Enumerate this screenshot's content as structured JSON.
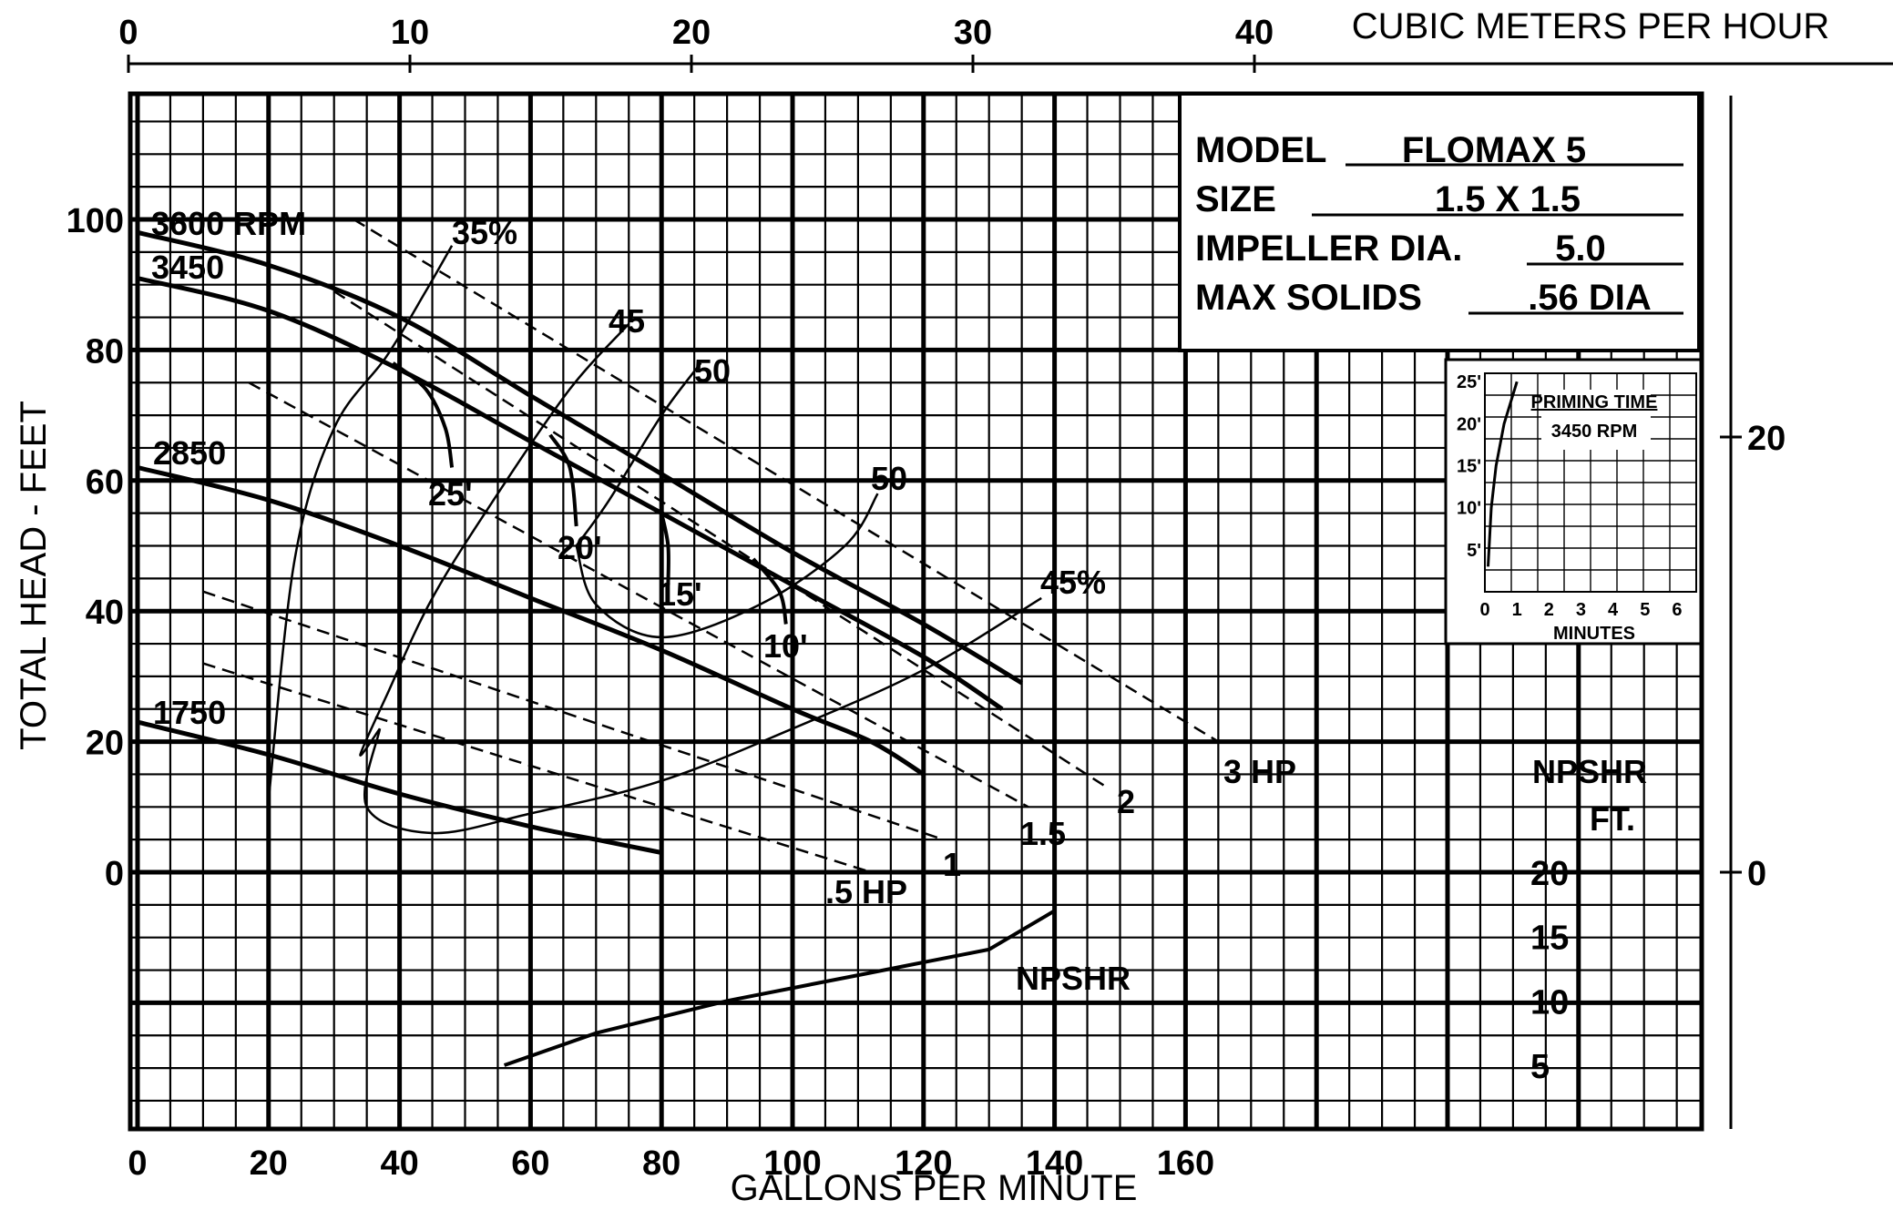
{
  "chart_data": {
    "type": "line",
    "xlabel": "GALLONS PER MINUTE",
    "ylabel": "TOTAL HEAD - FEET",
    "x2label": "CUBIC METERS PER HOUR",
    "xlim": [
      0,
      240
    ],
    "ylim": [
      -38,
      118
    ],
    "x_ticks": [
      "0",
      "20",
      "40",
      "60",
      "80",
      "100",
      "120",
      "140",
      "160"
    ],
    "y_ticks": [
      "100",
      "80",
      "60",
      "40",
      "20",
      "0"
    ],
    "x2_ticks": [
      "0",
      "10",
      "20",
      "30",
      "40"
    ],
    "y2_ticks": [
      "20",
      "0"
    ],
    "info": {
      "model_label": "MODEL",
      "model_value": "FLOMAX 5",
      "size_label": "SIZE",
      "size_value": "1.5 X 1.5",
      "impeller_label": "IMPELLER DIA.",
      "impeller_value": "5.0",
      "solids_label": "MAX SOLIDS",
      "solids_value": ".56 DIA"
    },
    "speed_curves": [
      {
        "label": "3600 RPM",
        "points": [
          [
            0,
            98
          ],
          [
            20,
            93
          ],
          [
            40,
            85
          ],
          [
            60,
            73
          ],
          [
            80,
            61
          ],
          [
            100,
            49
          ],
          [
            120,
            38
          ],
          [
            135,
            29
          ]
        ]
      },
      {
        "label": "3450",
        "points": [
          [
            0,
            91
          ],
          [
            20,
            86
          ],
          [
            40,
            77
          ],
          [
            60,
            66
          ],
          [
            80,
            55
          ],
          [
            100,
            44
          ],
          [
            120,
            33
          ],
          [
            132,
            25
          ]
        ]
      },
      {
        "label": "2850",
        "points": [
          [
            0,
            62
          ],
          [
            20,
            57
          ],
          [
            40,
            50
          ],
          [
            60,
            42
          ],
          [
            80,
            34
          ],
          [
            100,
            25
          ],
          [
            112,
            20
          ],
          [
            120,
            15
          ]
        ]
      },
      {
        "label": "1750",
        "points": [
          [
            0,
            23
          ],
          [
            20,
            18
          ],
          [
            40,
            12
          ],
          [
            60,
            7
          ],
          [
            70,
            5
          ],
          [
            80,
            3
          ]
        ]
      }
    ],
    "horsepower_lines": [
      {
        "label": ".5 HP",
        "points": [
          [
            10,
            32
          ],
          [
            112,
            0
          ]
        ]
      },
      {
        "label": "1",
        "points": [
          [
            10,
            43
          ],
          [
            123,
            5
          ]
        ]
      },
      {
        "label": "1.5",
        "points": [
          [
            17,
            75
          ],
          [
            136,
            10
          ]
        ]
      },
      {
        "label": "2",
        "points": [
          [
            30,
            89
          ],
          [
            148,
            13
          ]
        ]
      },
      {
        "label": "3 HP",
        "points": [
          [
            33,
            100
          ],
          [
            165,
            20
          ]
        ]
      }
    ],
    "efficiency_curves": [
      {
        "label": "35%",
        "points": [
          [
            20,
            11
          ],
          [
            24,
            48
          ],
          [
            30,
            68
          ],
          [
            38,
            79
          ],
          [
            44,
            89
          ],
          [
            48,
            96
          ]
        ]
      },
      {
        "label": "45",
        "points": [
          [
            37,
            22
          ],
          [
            34,
            18
          ],
          [
            38,
            27
          ],
          [
            45,
            42
          ],
          [
            55,
            58
          ],
          [
            66,
            74
          ],
          [
            75,
            84
          ]
        ]
      },
      {
        "label": "50",
        "points": [
          [
            67,
            50
          ],
          [
            72,
            57
          ],
          [
            80,
            70
          ],
          [
            86,
            78
          ]
        ]
      },
      {
        "label": "50",
        "points": [
          [
            67,
            50
          ],
          [
            70,
            41
          ],
          [
            80,
            36
          ],
          [
            95,
            41
          ],
          [
            108,
            50
          ],
          [
            113,
            58
          ]
        ]
      },
      {
        "label": "45%",
        "points": [
          [
            37,
            22
          ],
          [
            35,
            10
          ],
          [
            45,
            6
          ],
          [
            60,
            9
          ],
          [
            80,
            14
          ],
          [
            100,
            22
          ],
          [
            120,
            31
          ],
          [
            138,
            42
          ]
        ]
      }
    ],
    "suction_lift_curves": [
      {
        "label": "25'",
        "points": [
          [
            39,
            78
          ],
          [
            44,
            74
          ],
          [
            47,
            68
          ],
          [
            48,
            62
          ]
        ]
      },
      {
        "label": "20'",
        "points": [
          [
            63,
            67
          ],
          [
            66,
            62
          ],
          [
            67,
            53
          ]
        ]
      },
      {
        "label": "15'",
        "points": [
          [
            80,
            55
          ],
          [
            81,
            50
          ],
          [
            81,
            44
          ]
        ]
      },
      {
        "label": "10'",
        "points": [
          [
            94,
            48
          ],
          [
            98,
            43
          ],
          [
            99,
            38
          ]
        ]
      }
    ],
    "npshr": {
      "label": "NPSHR",
      "scale_label": "NPSHR",
      "scale_unit": "FT.",
      "ticks": [
        "20",
        "15",
        "10",
        "5"
      ],
      "points": [
        [
          56,
          5
        ],
        [
          70,
          7.5
        ],
        [
          90,
          10
        ],
        [
          110,
          12
        ],
        [
          130,
          14
        ],
        [
          140,
          17
        ]
      ]
    },
    "inset": {
      "title": "PRIMING TIME",
      "subtitle": "3450 RPM",
      "xlabel": "MINUTES",
      "x_ticks": [
        "0",
        "1",
        "2",
        "3",
        "4",
        "5",
        "6"
      ],
      "y_ticks": [
        "25'",
        "20'",
        "15'",
        "10'",
        "5'"
      ],
      "points": [
        [
          0.1,
          3
        ],
        [
          0.2,
          10
        ],
        [
          0.35,
          15
        ],
        [
          0.6,
          20
        ],
        [
          1.0,
          25
        ]
      ]
    }
  }
}
